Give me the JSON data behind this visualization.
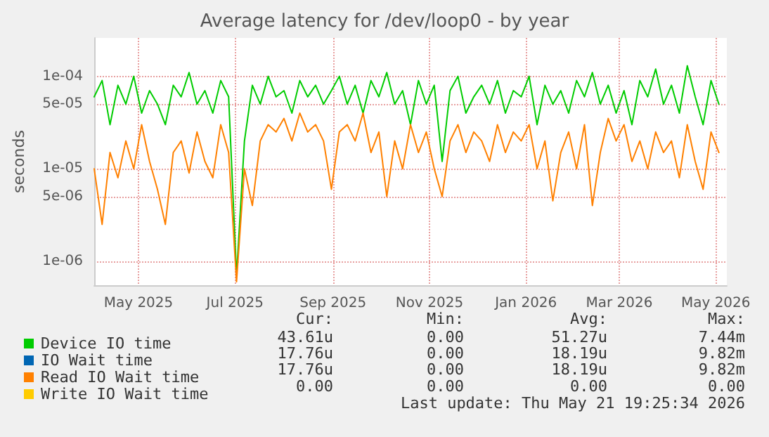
{
  "chart_data": {
    "type": "line",
    "title": "Average latency for /dev/loop0 - by year",
    "ylabel": "seconds",
    "log": "y",
    "grid": true,
    "legend": "bottom left",
    "marker": "none",
    "line_style": "solid",
    "x": [
      "2025-04-03",
      "2025-04-08",
      "2025-04-13",
      "2025-04-18",
      "2025-04-23",
      "2025-04-28",
      "2025-05-03",
      "2025-05-08",
      "2025-05-13",
      "2025-05-18",
      "2025-05-23",
      "2025-05-28",
      "2025-06-02",
      "2025-06-07",
      "2025-06-12",
      "2025-06-17",
      "2025-06-22",
      "2025-06-27",
      "2025-07-02",
      "2025-07-07",
      "2025-07-12",
      "2025-07-17",
      "2025-07-22",
      "2025-07-27",
      "2025-08-01",
      "2025-08-06",
      "2025-08-11",
      "2025-08-16",
      "2025-08-21",
      "2025-08-26",
      "2025-08-31",
      "2025-09-05",
      "2025-09-10",
      "2025-09-15",
      "2025-09-20",
      "2025-09-25",
      "2025-09-30",
      "2025-10-05",
      "2025-10-10",
      "2025-10-15",
      "2025-10-20",
      "2025-10-25",
      "2025-10-30",
      "2025-11-04",
      "2025-11-09",
      "2025-11-14",
      "2025-11-19",
      "2025-11-24",
      "2025-11-29",
      "2025-12-04",
      "2025-12-09",
      "2025-12-14",
      "2025-12-19",
      "2025-12-24",
      "2025-12-29",
      "2026-01-03",
      "2026-01-08",
      "2026-01-13",
      "2026-01-18",
      "2026-01-23",
      "2026-01-28",
      "2026-02-02",
      "2026-02-07",
      "2026-02-12",
      "2026-02-17",
      "2026-02-22",
      "2026-02-27",
      "2026-03-04",
      "2026-03-09",
      "2026-03-14",
      "2026-03-19",
      "2026-03-24",
      "2026-03-29",
      "2026-04-03",
      "2026-04-08",
      "2026-04-13",
      "2026-04-18",
      "2026-04-23",
      "2026-04-28",
      "2026-05-03"
    ],
    "xlim": [
      "2025-04-03",
      "2026-05-08"
    ],
    "xticks": [
      {
        "value": "2025-05-01",
        "label": "May 2025"
      },
      {
        "value": "2025-07-01",
        "label": "Jul 2025"
      },
      {
        "value": "2025-09-01",
        "label": "Sep 2025"
      },
      {
        "value": "2025-11-01",
        "label": "Nov 2025"
      },
      {
        "value": "2026-01-01",
        "label": "Jan 2026"
      },
      {
        "value": "2026-03-01",
        "label": "Mar 2026"
      },
      {
        "value": "2026-05-01",
        "label": "May 2026"
      }
    ],
    "ylim": [
      5.5e-07,
      0.00026
    ],
    "yticks": [
      {
        "value": 1e-06,
        "label": "1e-06"
      },
      {
        "value": 5e-06,
        "label": "5e-06"
      },
      {
        "value": 1e-05,
        "label": "1e-05"
      },
      {
        "value": 5e-05,
        "label": "5e-05"
      },
      {
        "value": 0.0001,
        "label": "1e-04"
      }
    ],
    "series": [
      {
        "name": "Device IO time",
        "color": "#00cc00",
        "values": [
          6e-05,
          9e-05,
          3e-05,
          8e-05,
          5e-05,
          0.0001,
          4e-05,
          7e-05,
          5e-05,
          3e-05,
          8e-05,
          6e-05,
          0.00011,
          5e-05,
          7e-05,
          4e-05,
          9e-05,
          6e-05,
          7e-07,
          2e-05,
          8e-05,
          5e-05,
          0.0001,
          6e-05,
          7e-05,
          4e-05,
          9e-05,
          6e-05,
          8e-05,
          5e-05,
          7e-05,
          0.0001,
          5e-05,
          8e-05,
          4e-05,
          9e-05,
          6e-05,
          0.00011,
          5e-05,
          7e-05,
          3e-05,
          9e-05,
          5e-05,
          8e-05,
          1.2e-05,
          7e-05,
          0.0001,
          4e-05,
          6e-05,
          8e-05,
          5e-05,
          9e-05,
          4e-05,
          7e-05,
          6e-05,
          0.0001,
          3e-05,
          8e-05,
          5e-05,
          7e-05,
          4e-05,
          9e-05,
          6e-05,
          0.00011,
          5e-05,
          8e-05,
          4e-05,
          7e-05,
          3e-05,
          9e-05,
          6e-05,
          0.00012,
          5e-05,
          8e-05,
          4e-05,
          0.00013,
          6e-05,
          3e-05,
          9e-05,
          5e-05
        ]
      },
      {
        "name": "IO Wait time",
        "color": "#0066b3",
        "values": [
          null,
          null,
          null,
          null,
          null,
          null,
          null,
          null,
          null,
          null,
          null,
          null,
          null,
          null,
          null,
          null,
          null,
          null,
          null,
          null,
          null,
          null,
          null,
          null,
          null,
          null,
          null,
          null,
          null,
          null,
          null,
          null,
          null,
          null,
          null,
          null,
          null,
          null,
          null,
          null,
          null,
          null,
          null,
          null,
          null,
          null,
          null,
          null,
          null,
          null,
          null,
          null,
          null,
          null,
          null,
          null,
          null,
          null,
          null,
          null,
          null,
          null,
          null,
          null,
          null,
          null,
          null,
          null,
          null,
          null,
          null,
          null,
          null,
          null,
          null,
          null,
          null,
          null,
          null,
          null
        ]
      },
      {
        "name": "Read IO Wait time",
        "color": "#ff8000",
        "values": [
          1e-05,
          2.5e-06,
          1.5e-05,
          8e-06,
          2e-05,
          1e-05,
          3e-05,
          1.2e-05,
          6e-06,
          2.5e-06,
          1.5e-05,
          2e-05,
          9e-06,
          2.5e-05,
          1.2e-05,
          8e-06,
          3e-05,
          1.5e-05,
          6e-07,
          1e-05,
          4e-06,
          2e-05,
          3e-05,
          2.5e-05,
          3.5e-05,
          2e-05,
          4e-05,
          2.5e-05,
          3e-05,
          2e-05,
          6e-06,
          2.5e-05,
          3e-05,
          2e-05,
          4e-05,
          1.5e-05,
          2.5e-05,
          5e-06,
          2e-05,
          1e-05,
          3e-05,
          1.5e-05,
          2.5e-05,
          1e-05,
          5e-06,
          2e-05,
          3e-05,
          1.5e-05,
          2.5e-05,
          2e-05,
          1.2e-05,
          3e-05,
          1.5e-05,
          2.5e-05,
          2e-05,
          3e-05,
          1e-05,
          2e-05,
          4.5e-06,
          1.5e-05,
          2.5e-05,
          1e-05,
          3e-05,
          4e-06,
          1.5e-05,
          3.5e-05,
          2e-05,
          3e-05,
          1.2e-05,
          2e-05,
          1e-05,
          2.5e-05,
          1.5e-05,
          2e-05,
          8e-06,
          3e-05,
          1.2e-05,
          6e-06,
          2.5e-05,
          1.5e-05
        ]
      },
      {
        "name": "Write IO Wait time",
        "color": "#ffcc00",
        "values": [
          null,
          null,
          null,
          null,
          null,
          null,
          null,
          null,
          null,
          null,
          null,
          null,
          null,
          null,
          null,
          null,
          null,
          null,
          null,
          null,
          null,
          null,
          null,
          null,
          null,
          null,
          null,
          null,
          null,
          null,
          null,
          null,
          null,
          null,
          null,
          null,
          null,
          null,
          null,
          null,
          null,
          null,
          null,
          null,
          null,
          null,
          null,
          null,
          null,
          null,
          null,
          null,
          null,
          null,
          null,
          null,
          null,
          null,
          null,
          null,
          null,
          null,
          null,
          null,
          null,
          null,
          null,
          null,
          null,
          null,
          null,
          null,
          null,
          null,
          null,
          null,
          null,
          null,
          null,
          null
        ]
      }
    ],
    "annotations": [
      "Cur:",
      "Min:",
      "Avg:",
      "Max:",
      "43.61u",
      "0.00",
      "51.27u",
      "7.44m",
      "17.76u",
      "0.00",
      "18.19u",
      "9.82m",
      "17.76u",
      "0.00",
      "18.19u",
      "9.82m",
      "0.00",
      "0.00",
      "0.00",
      "0.00",
      "Last update: Thu May 21 19:25:34 2026"
    ]
  }
}
